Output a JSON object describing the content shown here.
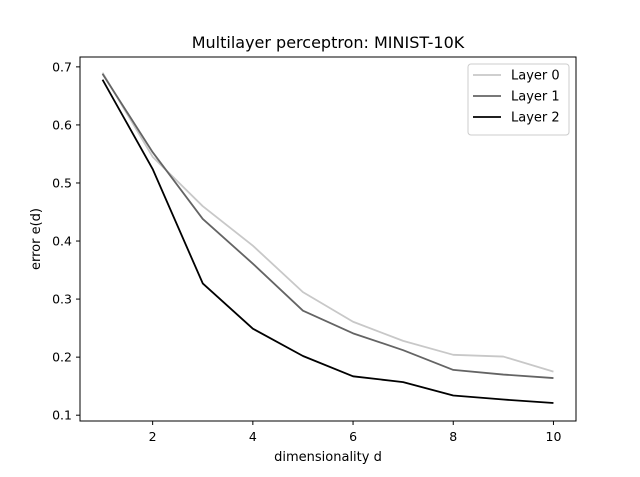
{
  "chart_data": {
    "type": "line",
    "title": "Multilayer perceptron: MINIST-10K",
    "xlabel": "dimensionality d",
    "ylabel": "error e(d)",
    "xlim": [
      0.55,
      10.45
    ],
    "ylim": [
      0.09,
      0.717
    ],
    "xticks": [
      2,
      4,
      6,
      8,
      10
    ],
    "yticks": [
      0.1,
      0.2,
      0.3,
      0.4,
      0.5,
      0.6,
      0.7
    ],
    "grid": false,
    "legend_position": "top-right",
    "x": [
      1,
      2,
      3,
      4,
      5,
      6,
      7,
      8,
      9,
      10
    ],
    "series": [
      {
        "name": "Layer 0",
        "color": "#c8c8c8",
        "values": [
          0.69,
          0.545,
          0.46,
          0.392,
          0.312,
          0.261,
          0.228,
          0.204,
          0.201,
          0.175
        ]
      },
      {
        "name": "Layer 1",
        "color": "#646464",
        "values": [
          0.688,
          0.553,
          0.438,
          0.361,
          0.28,
          0.241,
          0.212,
          0.178,
          0.17,
          0.164
        ]
      },
      {
        "name": "Layer 2",
        "color": "#000000",
        "values": [
          0.678,
          0.524,
          0.327,
          0.249,
          0.202,
          0.167,
          0.157,
          0.134,
          0.127,
          0.121
        ]
      }
    ]
  }
}
